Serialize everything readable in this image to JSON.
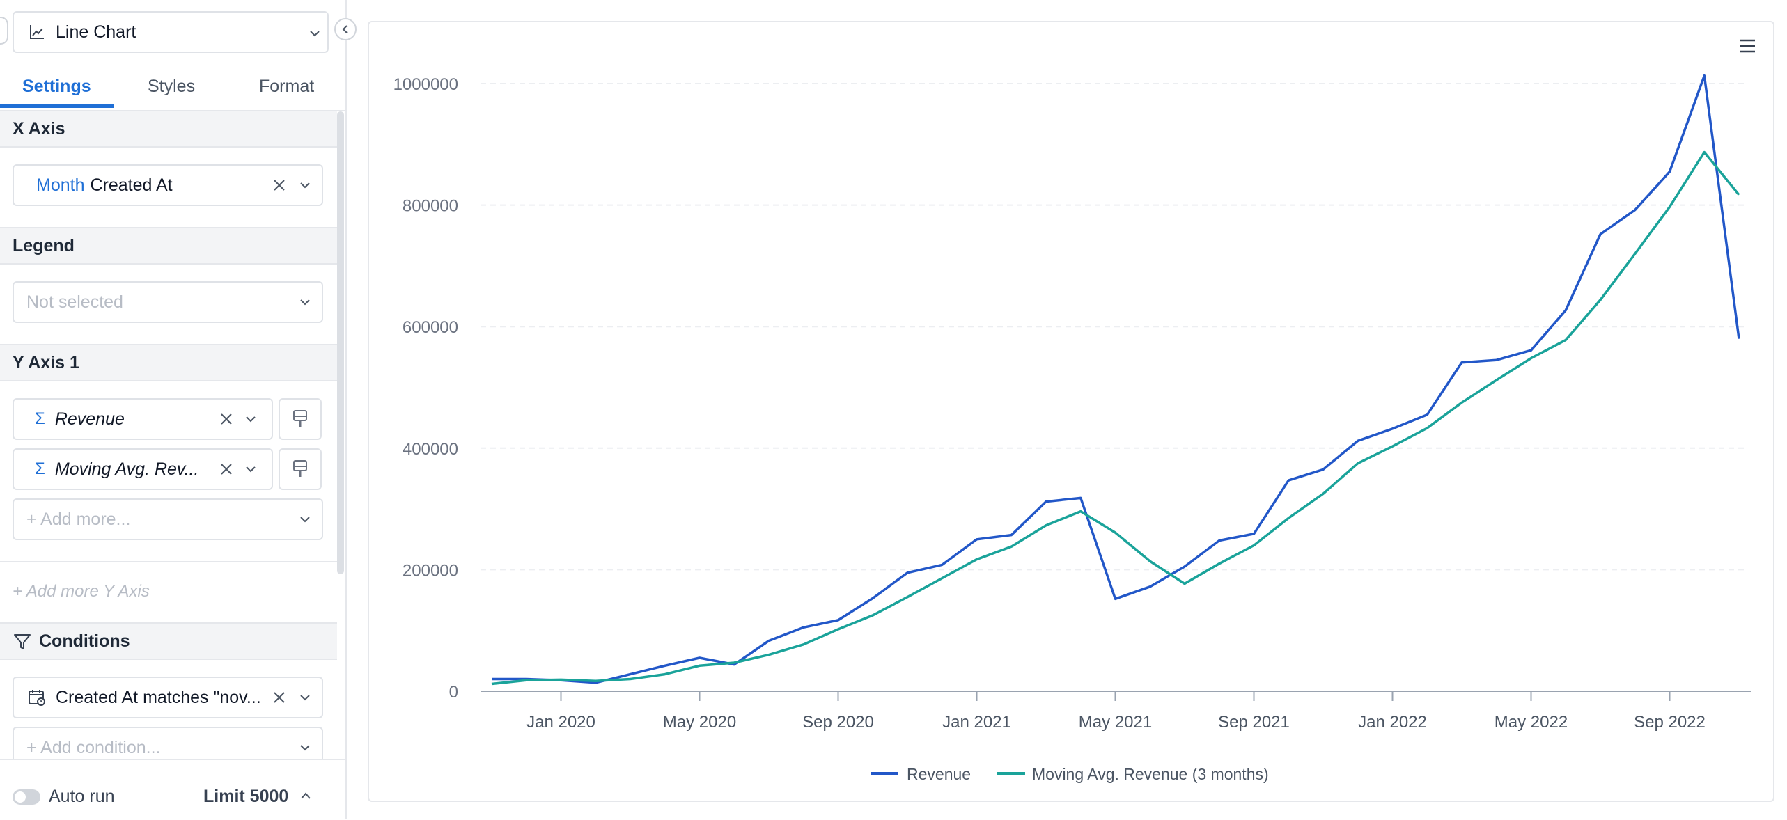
{
  "sidebar": {
    "chart_type": {
      "label": "Line Chart",
      "icon": "line-chart-icon"
    },
    "tabs": [
      {
        "label": "Settings",
        "active": true
      },
      {
        "label": "Styles",
        "active": false
      },
      {
        "label": "Format",
        "active": false
      }
    ],
    "x_axis": {
      "header": "X Axis",
      "field": {
        "granularity": "Month",
        "name": "Created At"
      }
    },
    "legend": {
      "header": "Legend",
      "placeholder": "Not selected"
    },
    "y_axis_1": {
      "header": "Y Axis 1",
      "fields": [
        {
          "name": "Revenue",
          "icon": "sigma-icon"
        },
        {
          "name": "Moving Avg. Rev...",
          "icon": "sigma-icon"
        }
      ],
      "add_more_placeholder": "+ Add more..."
    },
    "add_more_y_axis": "+ Add more Y Axis",
    "conditions": {
      "header": "Conditions",
      "items": [
        {
          "label": "Created At matches \"nov..."
        }
      ],
      "add_placeholder": "+ Add condition..."
    },
    "footer": {
      "auto_run_label": "Auto run",
      "auto_run_on": false,
      "limit_label": "Limit 5000"
    }
  },
  "chart_data": {
    "type": "line",
    "x": [
      "2019-11",
      "2019-12",
      "2020-01",
      "2020-02",
      "2020-03",
      "2020-04",
      "2020-05",
      "2020-06",
      "2020-07",
      "2020-08",
      "2020-09",
      "2020-10",
      "2020-11",
      "2020-12",
      "2021-01",
      "2021-02",
      "2021-03",
      "2021-04",
      "2021-05",
      "2021-06",
      "2021-07",
      "2021-08",
      "2021-09",
      "2021-10",
      "2021-11",
      "2021-12",
      "2022-01",
      "2022-02",
      "2022-03",
      "2022-04",
      "2022-05",
      "2022-06",
      "2022-07",
      "2022-08",
      "2022-09",
      "2022-10",
      "2022-11"
    ],
    "x_tick_labels": [
      {
        "x": "2020-01",
        "label": "Jan 2020"
      },
      {
        "x": "2020-05",
        "label": "May 2020"
      },
      {
        "x": "2020-09",
        "label": "Sep 2020"
      },
      {
        "x": "2021-01",
        "label": "Jan 2021"
      },
      {
        "x": "2021-05",
        "label": "May 2021"
      },
      {
        "x": "2021-09",
        "label": "Sep 2021"
      },
      {
        "x": "2022-01",
        "label": "Jan 2022"
      },
      {
        "x": "2022-05",
        "label": "May 2022"
      },
      {
        "x": "2022-09",
        "label": "Sep 2022"
      }
    ],
    "y_ticks": [
      0,
      200000,
      400000,
      600000,
      800000,
      1000000
    ],
    "ylim": [
      0,
      1000000
    ],
    "grid": "horizontal dashed",
    "legend_position": "bottom-center",
    "series": [
      {
        "name": "Revenue",
        "color": "#2257c8",
        "values": [
          20000,
          20000,
          18000,
          14000,
          28000,
          42000,
          55000,
          44000,
          83000,
          105000,
          117000,
          153000,
          195000,
          208000,
          250000,
          257000,
          312000,
          318000,
          152000,
          172000,
          205000,
          248000,
          259000,
          347000,
          365000,
          412000,
          432000,
          455000,
          541000,
          545000,
          561000,
          627000,
          752000,
          792000,
          855000,
          1013000,
          580000
        ]
      },
      {
        "name": "Moving Avg. Revenue (3 months)",
        "color": "#1aa39a",
        "values": [
          12000,
          18000,
          19000,
          17000,
          20000,
          28000,
          42000,
          47000,
          60000,
          77000,
          102000,
          125000,
          155000,
          186000,
          217000,
          238000,
          273000,
          296000,
          261000,
          214000,
          177000,
          210000,
          240000,
          285000,
          325000,
          375000,
          403000,
          433000,
          475000,
          512000,
          548000,
          578000,
          644000,
          720000,
          797000,
          887000,
          817000
        ]
      }
    ]
  }
}
